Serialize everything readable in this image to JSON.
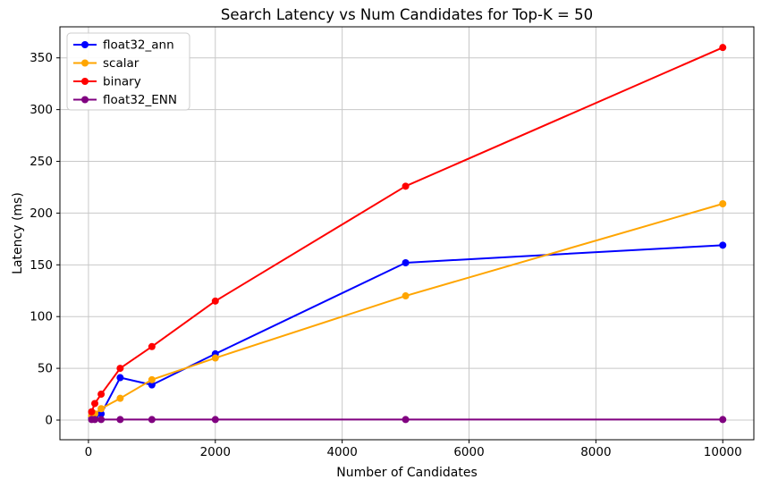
{
  "figure": {
    "title": "Search Latency vs Num Candidates for Top-K = 50"
  },
  "chart_data": {
    "type": "line",
    "title": "Search Latency vs Num Candidates for Top-K = 50",
    "xlabel": "Number of Candidates",
    "ylabel": "Latency (ms)",
    "x": [
      50,
      100,
      200,
      500,
      1000,
      2000,
      5000,
      10000
    ],
    "series": [
      {
        "name": "float32_ann",
        "color": "#0000ff",
        "values": [
          2,
          3,
          6,
          41,
          34,
          64,
          152,
          169
        ]
      },
      {
        "name": "scalar",
        "color": "#ffa500",
        "values": [
          4,
          6,
          11,
          21,
          39,
          60,
          120,
          209
        ]
      },
      {
        "name": "binary",
        "color": "#ff0000",
        "values": [
          8,
          16,
          25,
          50,
          71,
          115,
          226,
          360
        ]
      },
      {
        "name": "float32_ENN",
        "color": "#800080",
        "values": [
          0.5,
          0.5,
          0.5,
          0.5,
          0.5,
          0.5,
          0.5,
          0.5
        ]
      }
    ],
    "xlim": [
      -450,
      10490
    ],
    "ylim": [
      -19,
      380
    ],
    "xticks": [
      0,
      2000,
      4000,
      6000,
      8000,
      10000
    ],
    "yticks": [
      0,
      50,
      100,
      150,
      200,
      250,
      300,
      350
    ],
    "grid": true,
    "legend_position": "upper left",
    "marker": "o",
    "colors": {
      "grid": "#c8c8c8",
      "spine": "#000000",
      "text": "#000000",
      "background": "#ffffff"
    }
  }
}
